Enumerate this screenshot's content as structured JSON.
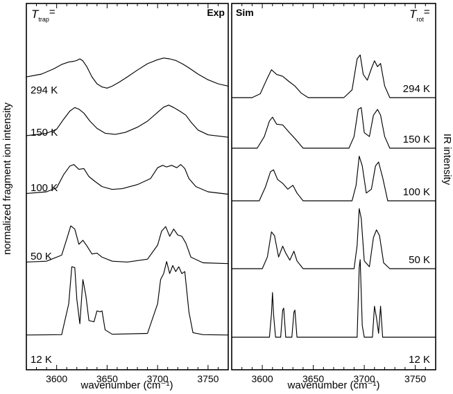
{
  "y_axis_left_label": "normalized fragment ion intensity",
  "y_axis_right_label": "IR intensity",
  "chart_data": [
    {
      "type": "line",
      "panel_label": "Exp",
      "legend_symbol": "T",
      "legend_subscript": "trap",
      "legend_suffix": "=",
      "xlabel": "wavenumber (cm⁻¹)",
      "xlim": [
        3570,
        3770
      ],
      "x_ticks": [
        "3600",
        "3650",
        "3700",
        "3750"
      ],
      "series": [
        {
          "name": "294 K",
          "baseline": 4.0,
          "points": [
            [
              3570,
              0.55
            ],
            [
              3585,
              0.62
            ],
            [
              3597,
              0.75
            ],
            [
              3605,
              0.86
            ],
            [
              3612,
              0.92
            ],
            [
              3617,
              0.94
            ],
            [
              3620,
              0.96
            ],
            [
              3623,
              1.0
            ],
            [
              3626,
              0.95
            ],
            [
              3630,
              0.8
            ],
            [
              3635,
              0.55
            ],
            [
              3640,
              0.38
            ],
            [
              3645,
              0.3
            ],
            [
              3650,
              0.27
            ],
            [
              3655,
              0.32
            ],
            [
              3662,
              0.42
            ],
            [
              3670,
              0.55
            ],
            [
              3680,
              0.72
            ],
            [
              3690,
              0.88
            ],
            [
              3700,
              0.98
            ],
            [
              3706,
              1.02
            ],
            [
              3712,
              1.0
            ],
            [
              3718,
              0.96
            ],
            [
              3725,
              0.87
            ],
            [
              3732,
              0.76
            ],
            [
              3740,
              0.62
            ],
            [
              3750,
              0.48
            ],
            [
              3760,
              0.38
            ],
            [
              3770,
              0.32
            ]
          ]
        },
        {
          "name": "150 K",
          "baseline": 3.0,
          "points": [
            [
              3570,
              0.14
            ],
            [
              3590,
              0.2
            ],
            [
              3600,
              0.3
            ],
            [
              3607,
              0.55
            ],
            [
              3613,
              0.75
            ],
            [
              3618,
              0.84
            ],
            [
              3622,
              0.8
            ],
            [
              3627,
              0.7
            ],
            [
              3633,
              0.5
            ],
            [
              3640,
              0.32
            ],
            [
              3648,
              0.2
            ],
            [
              3658,
              0.17
            ],
            [
              3668,
              0.22
            ],
            [
              3680,
              0.35
            ],
            [
              3690,
              0.5
            ],
            [
              3700,
              0.72
            ],
            [
              3706,
              0.85
            ],
            [
              3711,
              0.9
            ],
            [
              3716,
              0.84
            ],
            [
              3722,
              0.75
            ],
            [
              3728,
              0.65
            ],
            [
              3733,
              0.48
            ],
            [
              3740,
              0.28
            ],
            [
              3750,
              0.16
            ],
            [
              3770,
              0.1
            ]
          ]
        },
        {
          "name": "100 K",
          "baseline": 2.2,
          "points": [
            [
              3570,
              0.08
            ],
            [
              3590,
              0.12
            ],
            [
              3600,
              0.22
            ],
            [
              3607,
              0.55
            ],
            [
              3613,
              0.76
            ],
            [
              3617,
              0.8
            ],
            [
              3622,
              0.68
            ],
            [
              3627,
              0.7
            ],
            [
              3632,
              0.5
            ],
            [
              3638,
              0.38
            ],
            [
              3645,
              0.25
            ],
            [
              3655,
              0.18
            ],
            [
              3665,
              0.2
            ],
            [
              3680,
              0.3
            ],
            [
              3693,
              0.45
            ],
            [
              3700,
              0.72
            ],
            [
              3705,
              0.78
            ],
            [
              3709,
              0.74
            ],
            [
              3714,
              0.78
            ],
            [
              3719,
              0.72
            ],
            [
              3723,
              0.8
            ],
            [
              3727,
              0.7
            ],
            [
              3731,
              0.45
            ],
            [
              3738,
              0.25
            ],
            [
              3750,
              0.12
            ],
            [
              3770,
              0.06
            ]
          ]
        },
        {
          "name": "50 K",
          "baseline": 1.2,
          "points": [
            [
              3570,
              0.08
            ],
            [
              3590,
              0.1
            ],
            [
              3605,
              0.25
            ],
            [
              3610,
              0.65
            ],
            [
              3614,
              0.98
            ],
            [
              3618,
              0.9
            ],
            [
              3622,
              0.52
            ],
            [
              3626,
              0.62
            ],
            [
              3630,
              0.48
            ],
            [
              3635,
              0.28
            ],
            [
              3640,
              0.3
            ],
            [
              3645,
              0.2
            ],
            [
              3655,
              0.1
            ],
            [
              3670,
              0.08
            ],
            [
              3690,
              0.15
            ],
            [
              3700,
              0.5
            ],
            [
              3704,
              0.85
            ],
            [
              3708,
              0.96
            ],
            [
              3712,
              0.72
            ],
            [
              3716,
              0.9
            ],
            [
              3720,
              0.75
            ],
            [
              3724,
              0.72
            ],
            [
              3728,
              0.55
            ],
            [
              3733,
              0.2
            ],
            [
              3745,
              0.06
            ],
            [
              3770,
              0.04
            ]
          ]
        },
        {
          "name": "12 K",
          "baseline": 0.0,
          "points": [
            [
              3570,
              0.02
            ],
            [
              3605,
              0.03
            ],
            [
              3612,
              0.8
            ],
            [
              3615,
              1.72
            ],
            [
              3618,
              1.7
            ],
            [
              3620,
              0.9
            ],
            [
              3623,
              0.3
            ],
            [
              3626,
              1.4
            ],
            [
              3629,
              1.0
            ],
            [
              3632,
              0.38
            ],
            [
              3637,
              0.35
            ],
            [
              3640,
              0.62
            ],
            [
              3643,
              0.6
            ],
            [
              3645,
              0.62
            ],
            [
              3648,
              0.15
            ],
            [
              3655,
              0.04
            ],
            [
              3690,
              0.06
            ],
            [
              3700,
              0.8
            ],
            [
              3703,
              1.4
            ],
            [
              3706,
              1.55
            ],
            [
              3709,
              1.85
            ],
            [
              3712,
              1.55
            ],
            [
              3715,
              1.75
            ],
            [
              3718,
              1.6
            ],
            [
              3721,
              1.72
            ],
            [
              3724,
              1.55
            ],
            [
              3727,
              1.6
            ],
            [
              3731,
              0.6
            ],
            [
              3735,
              0.08
            ],
            [
              3745,
              0.03
            ],
            [
              3770,
              0.02
            ]
          ]
        }
      ]
    },
    {
      "type": "line",
      "panel_label": "Sim",
      "legend_symbol": "T",
      "legend_subscript": "rot",
      "legend_suffix": "=",
      "xlabel": "wavenumber (cm⁻¹)",
      "xlim": [
        3570,
        3770
      ],
      "x_ticks": [
        "3600",
        "3650",
        "3700",
        "3750"
      ],
      "series": [
        {
          "name": "294 K",
          "baseline": 3.55,
          "points": [
            [
              3570,
              0.0
            ],
            [
              3590,
              0.0
            ],
            [
              3598,
              0.1
            ],
            [
              3604,
              0.45
            ],
            [
              3609,
              0.72
            ],
            [
              3614,
              0.6
            ],
            [
              3620,
              0.55
            ],
            [
              3626,
              0.42
            ],
            [
              3632,
              0.3
            ],
            [
              3638,
              0.12
            ],
            [
              3645,
              0.0
            ],
            [
              3680,
              0.0
            ],
            [
              3688,
              0.2
            ],
            [
              3693,
              1.0
            ],
            [
              3696,
              1.1
            ],
            [
              3699,
              0.6
            ],
            [
              3703,
              0.45
            ],
            [
              3707,
              0.75
            ],
            [
              3710,
              0.95
            ],
            [
              3713,
              0.8
            ],
            [
              3716,
              0.88
            ],
            [
              3720,
              0.3
            ],
            [
              3725,
              0.0
            ],
            [
              3770,
              0.0
            ]
          ]
        },
        {
          "name": "150 K",
          "baseline": 2.6,
          "points": [
            [
              3570,
              0.0
            ],
            [
              3595,
              0.0
            ],
            [
              3602,
              0.3
            ],
            [
              3607,
              0.7
            ],
            [
              3610,
              0.8
            ],
            [
              3614,
              0.62
            ],
            [
              3620,
              0.6
            ],
            [
              3626,
              0.42
            ],
            [
              3633,
              0.22
            ],
            [
              3640,
              0.0
            ],
            [
              3685,
              0.0
            ],
            [
              3690,
              0.3
            ],
            [
              3694,
              1.0
            ],
            [
              3697,
              1.05
            ],
            [
              3700,
              0.4
            ],
            [
              3705,
              0.3
            ],
            [
              3709,
              0.85
            ],
            [
              3713,
              1.0
            ],
            [
              3716,
              0.85
            ],
            [
              3720,
              0.3
            ],
            [
              3725,
              0.0
            ],
            [
              3770,
              0.0
            ]
          ]
        },
        {
          "name": "100 K",
          "baseline": 1.8,
          "points": [
            [
              3570,
              0.0
            ],
            [
              3597,
              0.0
            ],
            [
              3603,
              0.35
            ],
            [
              3608,
              0.75
            ],
            [
              3611,
              0.8
            ],
            [
              3615,
              0.55
            ],
            [
              3620,
              0.45
            ],
            [
              3625,
              0.3
            ],
            [
              3630,
              0.4
            ],
            [
              3634,
              0.2
            ],
            [
              3640,
              0.0
            ],
            [
              3688,
              0.0
            ],
            [
              3692,
              0.4
            ],
            [
              3695,
              1.15
            ],
            [
              3698,
              0.9
            ],
            [
              3702,
              0.2
            ],
            [
              3707,
              0.3
            ],
            [
              3711,
              0.9
            ],
            [
              3714,
              1.0
            ],
            [
              3718,
              0.6
            ],
            [
              3723,
              0.0
            ],
            [
              3770,
              0.0
            ]
          ]
        },
        {
          "name": "50 K",
          "baseline": 0.8,
          "points": [
            [
              3570,
              0.0
            ],
            [
              3600,
              0.0
            ],
            [
              3605,
              0.3
            ],
            [
              3609,
              0.95
            ],
            [
              3612,
              0.85
            ],
            [
              3616,
              0.3
            ],
            [
              3620,
              0.58
            ],
            [
              3623,
              0.4
            ],
            [
              3627,
              0.22
            ],
            [
              3631,
              0.45
            ],
            [
              3634,
              0.2
            ],
            [
              3640,
              0.0
            ],
            [
              3690,
              0.0
            ],
            [
              3693,
              0.6
            ],
            [
              3695,
              1.55
            ],
            [
              3697,
              1.3
            ],
            [
              3700,
              0.2
            ],
            [
              3705,
              0.05
            ],
            [
              3709,
              0.8
            ],
            [
              3712,
              1.0
            ],
            [
              3715,
              0.85
            ],
            [
              3719,
              0.15
            ],
            [
              3725,
              0.0
            ],
            [
              3770,
              0.0
            ]
          ]
        },
        {
          "name": "12 K",
          "baseline": 0.0,
          "points": [
            [
              3570,
              0.0
            ],
            [
              3607,
              0.0
            ],
            [
              3609,
              0.6
            ],
            [
              3610,
              1.15
            ],
            [
              3611,
              0.6
            ],
            [
              3613,
              0.0
            ],
            [
              3618,
              0.0
            ],
            [
              3620,
              0.7
            ],
            [
              3621,
              0.75
            ],
            [
              3623,
              0.0
            ],
            [
              3629,
              0.0
            ],
            [
              3631,
              0.65
            ],
            [
              3632,
              0.7
            ],
            [
              3634,
              0.0
            ],
            [
              3693,
              0.0
            ],
            [
              3695,
              1.8
            ],
            [
              3696,
              2.0
            ],
            [
              3698,
              0.3
            ],
            [
              3700,
              0.0
            ],
            [
              3708,
              0.0
            ],
            [
              3710,
              0.8
            ],
            [
              3712,
              0.5
            ],
            [
              3714,
              0.1
            ],
            [
              3716,
              0.8
            ],
            [
              3718,
              0.0
            ],
            [
              3770,
              0.0
            ]
          ]
        }
      ]
    }
  ]
}
